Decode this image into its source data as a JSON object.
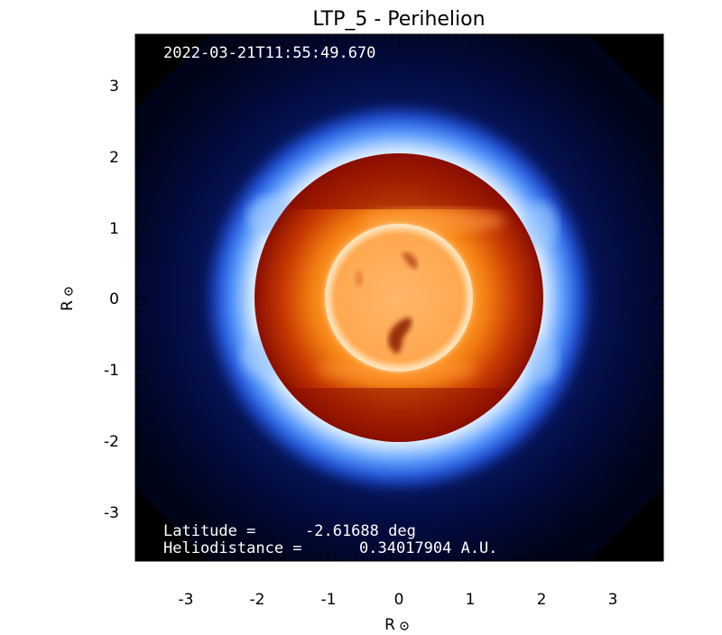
{
  "title": "LTP_5 - Perihelion",
  "timestamp": "2022-03-21T11:55:49.670",
  "latitude_label": "Latitude =",
  "latitude_value": "-2.61688 deg",
  "heliodistance_label": "Heliodistance =",
  "heliodistance_value": "0.34017904 A.U.",
  "x_axis_label": "R",
  "y_axis_label": "R",
  "x_ticks": [
    "-3",
    "-2",
    "-1",
    "0",
    "1",
    "2",
    "3"
  ],
  "y_ticks": [
    "3",
    "2",
    "1",
    "0",
    "-1",
    "-2",
    "-3"
  ],
  "sun_symbol": "sun-circledot-icon"
}
